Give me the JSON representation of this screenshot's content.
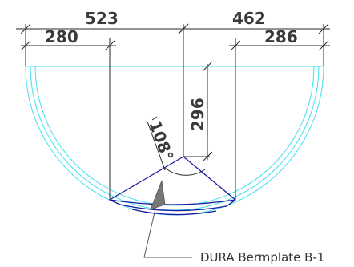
{
  "dimensions": {
    "top_left_outer": "523",
    "top_left_inner": "280",
    "top_right_outer": "462",
    "top_right_inner": "286",
    "vertical": "296"
  },
  "angle": "108°",
  "callout": "DURA Bermplate B-1",
  "colors": {
    "outline": "#40e0f0",
    "plate": "#1a1aa0",
    "dimension": "#2a2a2a"
  }
}
